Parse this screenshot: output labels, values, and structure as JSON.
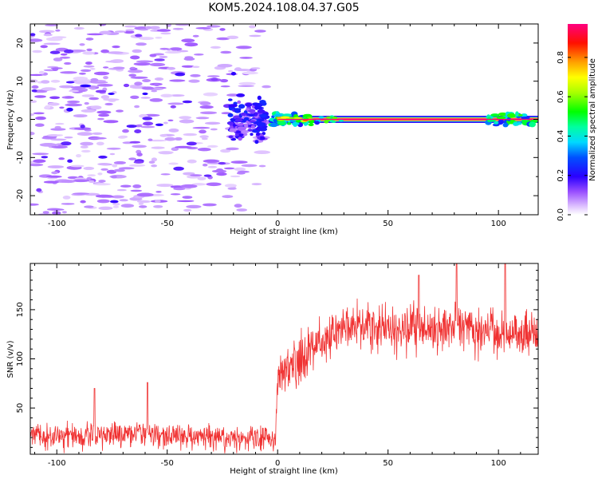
{
  "title": "KOM5.2024.108.04.37.G05",
  "chart_data": [
    {
      "type": "heatmap",
      "xlabel": "Height of straight line (km)",
      "ylabel": "Frequency (Hz)",
      "xlim": [
        -112,
        118
      ],
      "ylim": [
        -25,
        25
      ],
      "xticks": [
        -100,
        -50,
        0,
        50,
        100
      ],
      "xtick_labels": [
        "-100",
        "-50",
        "0",
        "50",
        "100"
      ],
      "yticks": [
        -20,
        -10,
        0,
        10,
        20
      ],
      "ytick_labels": [
        "-20",
        "-10",
        "0",
        "10",
        "20"
      ],
      "colorbar": {
        "label": "Normalized spectral amplitude",
        "range": [
          0,
          0.97
        ],
        "ticks": [
          0.0,
          0.2,
          0.4,
          0.6,
          0.8
        ],
        "tick_labels": [
          "0.0",
          "0.2",
          "0.4",
          "0.6",
          "0.8"
        ]
      },
      "features": [
        {
          "region": "x < -5 km",
          "description": "scattered noise",
          "amplitude": [
            0.02,
            0.25
          ]
        },
        {
          "region": "x -22 to -5 km, freq -8 to 8 Hz",
          "description": "strong noise cluster",
          "amplitude": [
            0.1,
            0.25
          ]
        },
        {
          "region": "x 0 to 118 km, freq ~0 Hz",
          "description": "signal line",
          "amplitude": [
            0.3,
            0.97
          ]
        }
      ]
    },
    {
      "type": "line",
      "xlabel": "Height of straight line (km)",
      "ylabel": "SNR (v/v)",
      "xlim": [
        -112,
        118
      ],
      "ylim": [
        3,
        197
      ],
      "xticks": [
        -100,
        -50,
        0,
        50,
        100
      ],
      "xtick_labels": [
        "-100",
        "-50",
        "0",
        "50",
        "100"
      ],
      "yticks": [
        50,
        100,
        150
      ],
      "ytick_labels": [
        "50",
        "100",
        "150"
      ],
      "color": "#f03232",
      "series_profile": [
        {
          "x": -112,
          "y": 22
        },
        {
          "x": -83,
          "y": 22
        },
        {
          "x": -60,
          "y": 24
        },
        {
          "x": -30,
          "y": 20
        },
        {
          "x": -1,
          "y": 20
        },
        {
          "x": 0,
          "y": 80
        },
        {
          "x": 5,
          "y": 88
        },
        {
          "x": 10,
          "y": 98
        },
        {
          "x": 15,
          "y": 108
        },
        {
          "x": 20,
          "y": 118
        },
        {
          "x": 25,
          "y": 130
        },
        {
          "x": 30,
          "y": 134
        },
        {
          "x": 40,
          "y": 132
        },
        {
          "x": 50,
          "y": 128
        },
        {
          "x": 60,
          "y": 132
        },
        {
          "x": 70,
          "y": 130
        },
        {
          "x": 80,
          "y": 135
        },
        {
          "x": 90,
          "y": 128
        },
        {
          "x": 100,
          "y": 126
        },
        {
          "x": 110,
          "y": 128
        },
        {
          "x": 118,
          "y": 130
        }
      ],
      "spikes": [
        {
          "x": -83,
          "y": 70
        },
        {
          "x": -59,
          "y": 76
        },
        {
          "x": 64,
          "y": 185
        },
        {
          "x": 81,
          "y": 197
        },
        {
          "x": 103,
          "y": 197
        }
      ]
    }
  ]
}
